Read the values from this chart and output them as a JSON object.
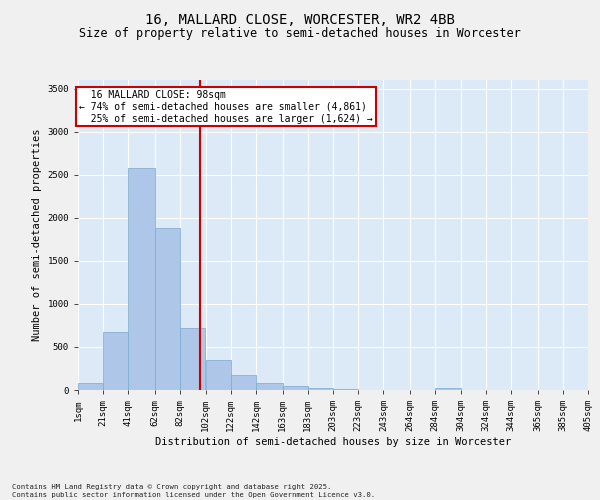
{
  "title_line1": "16, MALLARD CLOSE, WORCESTER, WR2 4BB",
  "title_line2": "Size of property relative to semi-detached houses in Worcester",
  "xlabel": "Distribution of semi-detached houses by size in Worcester",
  "ylabel": "Number of semi-detached properties",
  "property_size": 98,
  "property_label": "16 MALLARD CLOSE: 98sqm",
  "pct_smaller": 74,
  "count_smaller": 4861,
  "pct_larger": 25,
  "count_larger": 1624,
  "bar_color": "#aec6e8",
  "bar_edgecolor": "#7aaad0",
  "vline_color": "#cc0000",
  "annotation_box_edgecolor": "#cc0000",
  "background_color": "#dce9f7",
  "grid_color": "#ffffff",
  "fig_background": "#f0f0f0",
  "bins": [
    1,
    21,
    41,
    62,
    82,
    102,
    122,
    142,
    163,
    183,
    203,
    223,
    243,
    264,
    284,
    304,
    324,
    344,
    365,
    385,
    405
  ],
  "bin_labels": [
    "1sqm",
    "21sqm",
    "41sqm",
    "62sqm",
    "82sqm",
    "102sqm",
    "122sqm",
    "142sqm",
    "163sqm",
    "183sqm",
    "203sqm",
    "223sqm",
    "243sqm",
    "264sqm",
    "284sqm",
    "304sqm",
    "324sqm",
    "344sqm",
    "365sqm",
    "385sqm",
    "405sqm"
  ],
  "counts": [
    80,
    670,
    2580,
    1880,
    720,
    350,
    170,
    80,
    50,
    20,
    10,
    0,
    0,
    0,
    20,
    0,
    0,
    0,
    0,
    0
  ],
  "ylim": [
    0,
    3600
  ],
  "yticks": [
    0,
    500,
    1000,
    1500,
    2000,
    2500,
    3000,
    3500
  ],
  "footnote": "Contains HM Land Registry data © Crown copyright and database right 2025.\nContains public sector information licensed under the Open Government Licence v3.0.",
  "title_fontsize": 10,
  "subtitle_fontsize": 8.5,
  "tick_fontsize": 6.5,
  "label_fontsize": 7.5,
  "annotation_fontsize": 7
}
